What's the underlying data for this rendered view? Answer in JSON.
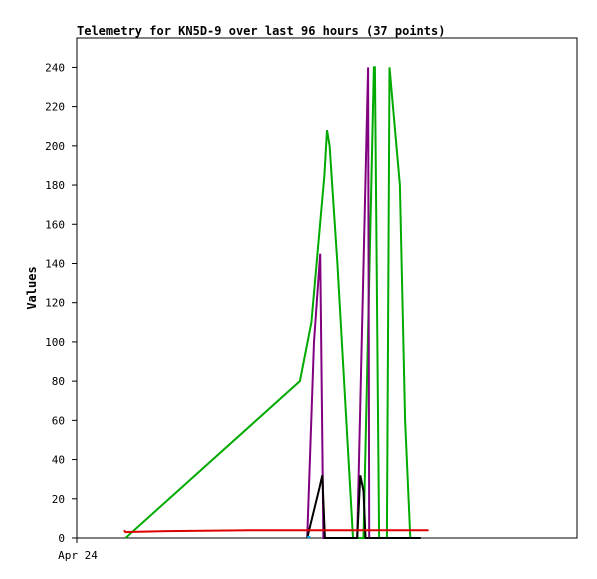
{
  "chart_data": {
    "type": "line",
    "title": "Telemetry for KN5D-9 over last 96 hours (37 points)",
    "xlabel": "",
    "ylabel": "Values",
    "ylim": [
      0,
      255
    ],
    "yticks": [
      0,
      20,
      40,
      60,
      80,
      100,
      120,
      140,
      160,
      180,
      200,
      220,
      240
    ],
    "xlim": [
      0,
      96
    ],
    "x_tick_labels": [
      {
        "x": 0,
        "label": "Apr 24"
      }
    ],
    "grid": false,
    "legend": "none",
    "series": [
      {
        "color": "#00aa00",
        "x": [
          9.3,
          42.8,
          45.0,
          47.5,
          48.0,
          48.5,
          50.0,
          53.0,
          55.0,
          57.0,
          57.2,
          58.0,
          59.0,
          59.5,
          60.0,
          62.0,
          63.0,
          64.0
        ],
        "y": [
          0,
          80,
          110,
          185,
          208,
          200,
          140,
          0,
          0,
          240,
          240,
          0,
          0,
          0,
          240,
          180,
          60,
          0
        ]
      },
      {
        "color": "#800080",
        "x": [
          44.2,
          45.5,
          46.7,
          47.3,
          53.8,
          55.9,
          56.1
        ],
        "y": [
          0,
          100,
          145,
          0,
          0,
          240,
          0
        ]
      },
      {
        "color": "#000000",
        "x": [
          44.2,
          46.5,
          47.1,
          47.6,
          48.0,
          53.8,
          54.4,
          55.0,
          55.4,
          56.0,
          66.0
        ],
        "y": [
          0,
          25,
          32,
          0,
          0,
          0,
          32,
          24,
          0,
          0,
          0
        ]
      },
      {
        "color": "#dd0000",
        "x": [
          9.0,
          9.3,
          17.3,
          33.4,
          67.5
        ],
        "y": [
          4,
          3,
          3.5,
          4,
          4
        ]
      },
      {
        "color": "#00aadd",
        "x": [
          44.2,
          44.8
        ],
        "y": [
          0.5,
          0.5
        ]
      }
    ]
  }
}
